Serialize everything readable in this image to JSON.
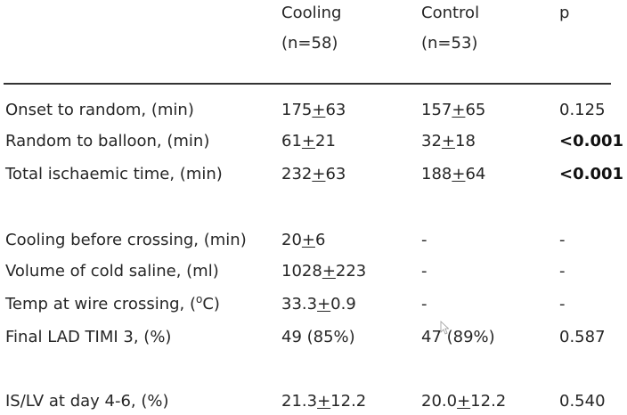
{
  "header": {
    "cooling": "Cooling",
    "cooling_n": "(n=58)",
    "control": "Control",
    "control_n": "(n=53)",
    "p": "p"
  },
  "rows": [
    {
      "label": "Onset to random, (min)",
      "cooling": [
        "175",
        "+",
        "63"
      ],
      "control": [
        "157",
        "+",
        "65"
      ],
      "p": "0.125",
      "bold": false
    },
    {
      "label": "Random to balloon, (min)",
      "cooling": [
        "61",
        "+",
        "21"
      ],
      "control": [
        "32",
        "+",
        "18"
      ],
      "p": "<0.001",
      "bold": true
    },
    {
      "label": "Total ischaemic time, (min)",
      "cooling": [
        "232",
        "+",
        "63"
      ],
      "control": [
        "188",
        "+",
        "64"
      ],
      "p": "<0.001",
      "bold": true
    },
    {
      "label": "Cooling before crossing, (min)",
      "cooling": [
        "20",
        "+",
        "6"
      ],
      "control": [
        "-"
      ],
      "p": "-",
      "bold": false
    },
    {
      "label": "Volume of cold saline, (ml)",
      "cooling": [
        "1028",
        "+",
        "223"
      ],
      "control": [
        "-"
      ],
      "p": "-",
      "bold": false
    },
    {
      "label_parts": [
        "Temp at wire crossing, (",
        "o",
        "C)"
      ],
      "cooling": [
        "33.3",
        "+",
        "0.9"
      ],
      "control": [
        "-"
      ],
      "p": "-",
      "bold": false
    },
    {
      "label": "Final LAD TIMI 3, (%)",
      "cooling": [
        "49 (85%)"
      ],
      "control": [
        "47 (89%)"
      ],
      "p": "0.587",
      "bold": false
    },
    {
      "label": "IS/LV at day 4-6, (%)",
      "cooling": [
        "21.3",
        "+",
        "12.2"
      ],
      "control": [
        "20.0",
        "+",
        "12.2"
      ],
      "p": "0.540",
      "bold": false
    }
  ]
}
